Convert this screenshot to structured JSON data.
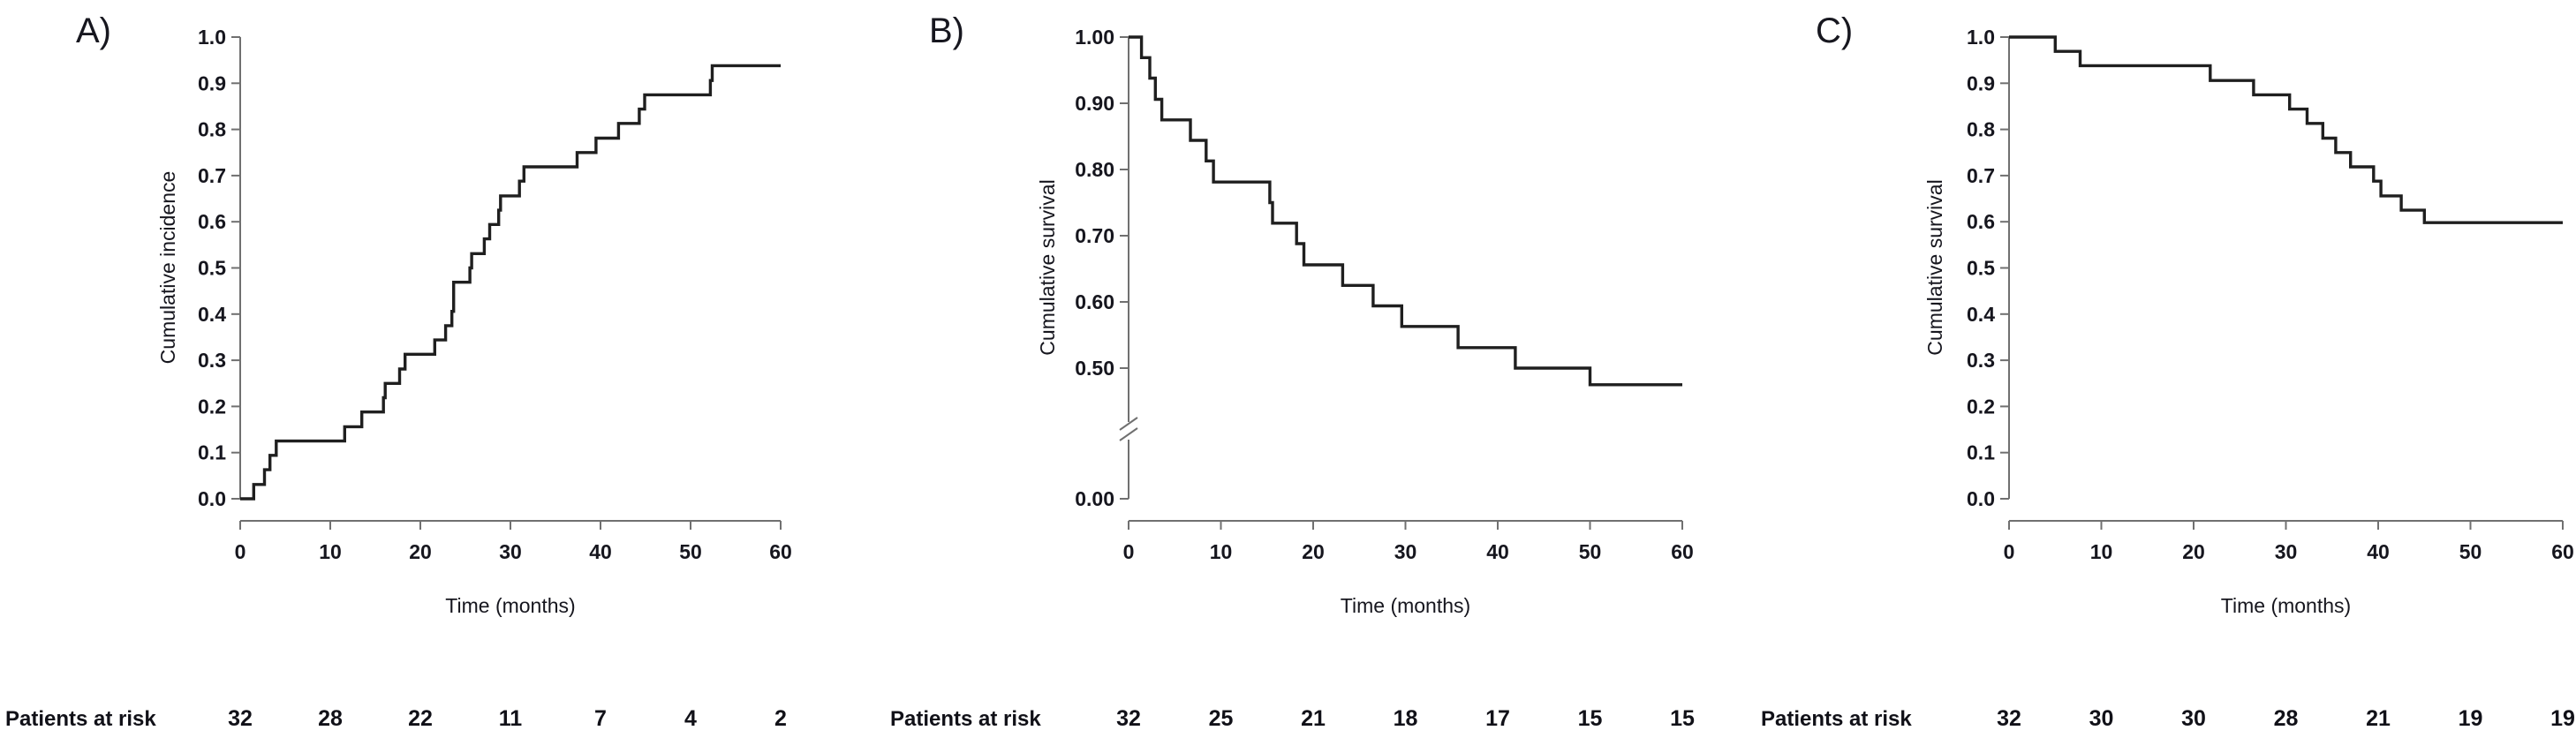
{
  "figure_title": "",
  "colors": {
    "background": "#ffffff",
    "curve": "#1f1f1f",
    "axis": "#707070",
    "text": "#17171f"
  },
  "chart_data": [
    {
      "type": "line",
      "subtype": "kaplan-meier-step",
      "panel_label": "A)",
      "title": "",
      "xlabel": "Time (months)",
      "ylabel": "Cumulative incidence",
      "xlim": [
        0,
        60
      ],
      "xticks": [
        0,
        10,
        20,
        30,
        40,
        50,
        60
      ],
      "ylim": [
        0,
        1
      ],
      "grid": false,
      "legend": "none",
      "broken_y_axis": false,
      "yticks": [
        {
          "v": 1.0,
          "label": "1.0"
        },
        {
          "v": 0.9,
          "label": "0.9"
        },
        {
          "v": 0.8,
          "label": "0.8"
        },
        {
          "v": 0.7,
          "label": "0.7"
        },
        {
          "v": 0.6,
          "label": "0.6"
        },
        {
          "v": 0.5,
          "label": "0.5"
        },
        {
          "v": 0.4,
          "label": "0.4"
        },
        {
          "v": 0.3,
          "label": "0.3"
        },
        {
          "v": 0.2,
          "label": "0.2"
        },
        {
          "v": 0.1,
          "label": "0.1"
        },
        {
          "v": 0.0,
          "label": "0.0"
        }
      ],
      "steps": [
        [
          0,
          0.0
        ],
        [
          1.5,
          0.031
        ],
        [
          2.7,
          0.063
        ],
        [
          3.3,
          0.094
        ],
        [
          4.0,
          0.125
        ],
        [
          11.6,
          0.156
        ],
        [
          13.5,
          0.188
        ],
        [
          15.9,
          0.219
        ],
        [
          16.1,
          0.25
        ],
        [
          17.7,
          0.281
        ],
        [
          18.3,
          0.313
        ],
        [
          21.6,
          0.344
        ],
        [
          22.8,
          0.375
        ],
        [
          23.5,
          0.406
        ],
        [
          23.7,
          0.469
        ],
        [
          25.5,
          0.5
        ],
        [
          25.7,
          0.531
        ],
        [
          27.1,
          0.563
        ],
        [
          27.7,
          0.594
        ],
        [
          28.7,
          0.625
        ],
        [
          28.9,
          0.656
        ],
        [
          31.0,
          0.688
        ],
        [
          31.5,
          0.719
        ],
        [
          37.4,
          0.75
        ],
        [
          39.5,
          0.781
        ],
        [
          42.0,
          0.813
        ],
        [
          44.3,
          0.844
        ],
        [
          44.9,
          0.875
        ],
        [
          52.2,
          0.906
        ],
        [
          52.4,
          0.938
        ],
        [
          60,
          0.938
        ]
      ],
      "at_risk": {
        "label": "Patients at risk",
        "times": [
          0,
          10,
          20,
          30,
          40,
          50,
          60
        ],
        "counts": [
          32,
          28,
          22,
          11,
          7,
          4,
          2
        ]
      }
    },
    {
      "type": "line",
      "subtype": "kaplan-meier-step",
      "panel_label": "B)",
      "title": "",
      "xlabel": "Time (months)",
      "ylabel": "Cumulative survival",
      "xlim": [
        0,
        60
      ],
      "xticks": [
        0,
        10,
        20,
        30,
        40,
        50,
        60
      ],
      "ylim": [
        0,
        1
      ],
      "grid": false,
      "legend": "none",
      "broken_y_axis": true,
      "yticks": [
        {
          "v": 1.0,
          "label": "1.00"
        },
        {
          "v": 0.9,
          "label": "0.90"
        },
        {
          "v": 0.8,
          "label": "0.80"
        },
        {
          "v": 0.7,
          "label": "0.70"
        },
        {
          "v": 0.6,
          "label": "0.60"
        },
        {
          "v": 0.5,
          "label": "0.50"
        },
        {
          "v": 0.0,
          "label": "0.00"
        }
      ],
      "steps": [
        [
          0,
          1.0
        ],
        [
          1.4,
          0.969
        ],
        [
          2.3,
          0.938
        ],
        [
          2.9,
          0.906
        ],
        [
          3.6,
          0.875
        ],
        [
          6.7,
          0.844
        ],
        [
          8.4,
          0.813
        ],
        [
          9.2,
          0.781
        ],
        [
          15.3,
          0.75
        ],
        [
          15.6,
          0.719
        ],
        [
          18.2,
          0.688
        ],
        [
          19.0,
          0.656
        ],
        [
          23.2,
          0.625
        ],
        [
          26.5,
          0.594
        ],
        [
          29.6,
          0.563
        ],
        [
          35.7,
          0.531
        ],
        [
          41.9,
          0.5
        ],
        [
          50.0,
          0.475
        ],
        [
          60,
          0.475
        ]
      ],
      "at_risk": {
        "label": "Patients at risk",
        "times": [
          0,
          10,
          20,
          30,
          40,
          50,
          60
        ],
        "counts": [
          32,
          25,
          21,
          18,
          17,
          15,
          15
        ]
      }
    },
    {
      "type": "line",
      "subtype": "kaplan-meier-step",
      "panel_label": "C)",
      "title": "",
      "xlabel": "Time (months)",
      "ylabel": "Cumulative survival",
      "xlim": [
        0,
        60
      ],
      "xticks": [
        0,
        10,
        20,
        30,
        40,
        50,
        60
      ],
      "ylim": [
        0,
        1
      ],
      "grid": false,
      "legend": "none",
      "broken_y_axis": false,
      "yticks": [
        {
          "v": 1.0,
          "label": "1.0"
        },
        {
          "v": 0.9,
          "label": "0.9"
        },
        {
          "v": 0.8,
          "label": "0.8"
        },
        {
          "v": 0.7,
          "label": "0.7"
        },
        {
          "v": 0.6,
          "label": "0.6"
        },
        {
          "v": 0.5,
          "label": "0.5"
        },
        {
          "v": 0.4,
          "label": "0.4"
        },
        {
          "v": 0.3,
          "label": "0.3"
        },
        {
          "v": 0.2,
          "label": "0.2"
        },
        {
          "v": 0.1,
          "label": "0.1"
        },
        {
          "v": 0.0,
          "label": "0.0"
        }
      ],
      "steps": [
        [
          0,
          1.0
        ],
        [
          5.0,
          0.969
        ],
        [
          7.7,
          0.938
        ],
        [
          21.8,
          0.906
        ],
        [
          26.5,
          0.875
        ],
        [
          30.4,
          0.844
        ],
        [
          32.3,
          0.813
        ],
        [
          34.0,
          0.781
        ],
        [
          35.4,
          0.75
        ],
        [
          37.0,
          0.719
        ],
        [
          39.5,
          0.688
        ],
        [
          40.3,
          0.656
        ],
        [
          42.5,
          0.625
        ],
        [
          45.0,
          0.598
        ],
        [
          60,
          0.598
        ]
      ],
      "at_risk": {
        "label": "Patients at risk",
        "times": [
          0,
          10,
          20,
          30,
          40,
          50,
          60
        ],
        "counts": [
          32,
          30,
          30,
          28,
          21,
          19,
          19
        ]
      }
    }
  ]
}
